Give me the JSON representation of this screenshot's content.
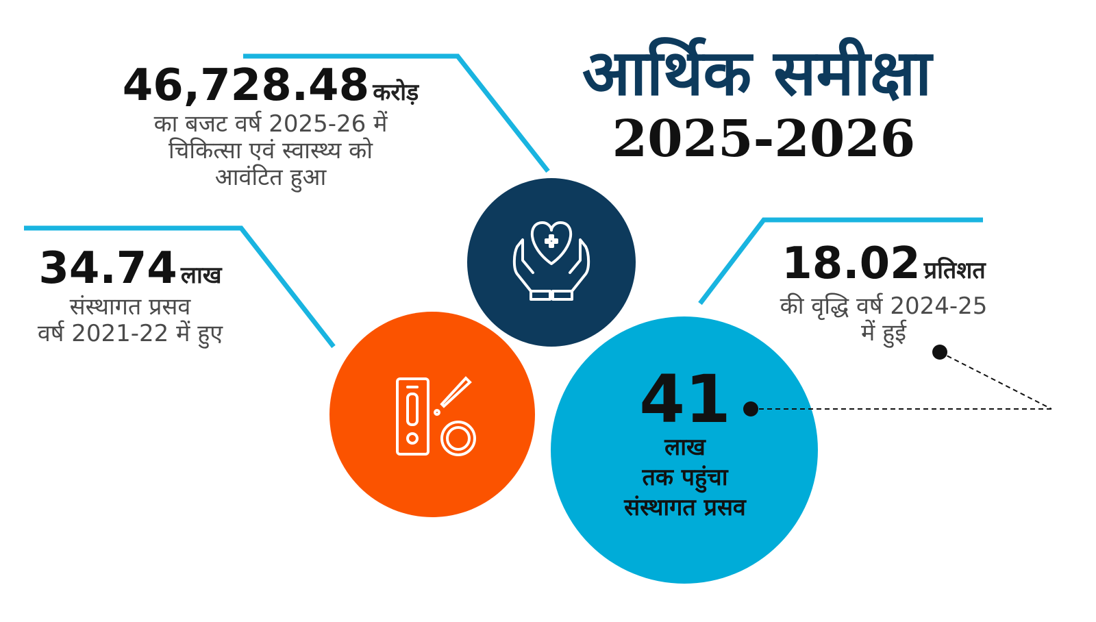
{
  "title": {
    "line1": "आर्थिक समीक्षा",
    "line2": "2025-2026"
  },
  "colors": {
    "navy": "#0d3a5c",
    "orange": "#fb5300",
    "cyan": "#00acd8",
    "line": "#19b4e0"
  },
  "stats": [
    {
      "value": "46,728.48",
      "unit": "करोड़",
      "lines": [
        "का बजट वर्ष 2025-26 में",
        "चिकित्सा एवं स्वास्थ्य को",
        "आवंटित हुआ"
      ]
    },
    {
      "value": "34.74",
      "unit": "लाख",
      "lines": [
        "संस्थागत प्रसव",
        "वर्ष 2021-22 में हुए"
      ]
    },
    {
      "value": "18.02",
      "unit": "प्रतिशत",
      "lines": [
        "की वृद्धि वर्ष 2024-25",
        "में हुई"
      ]
    },
    {
      "value": "41",
      "lines": [
        "लाख",
        "तक पहुंचा",
        "संस्थागत प्रसव"
      ]
    }
  ],
  "icons": {
    "navy_circle": "hands-heart-cross-icon",
    "orange_circle": "test-kit-dropper-icon"
  }
}
